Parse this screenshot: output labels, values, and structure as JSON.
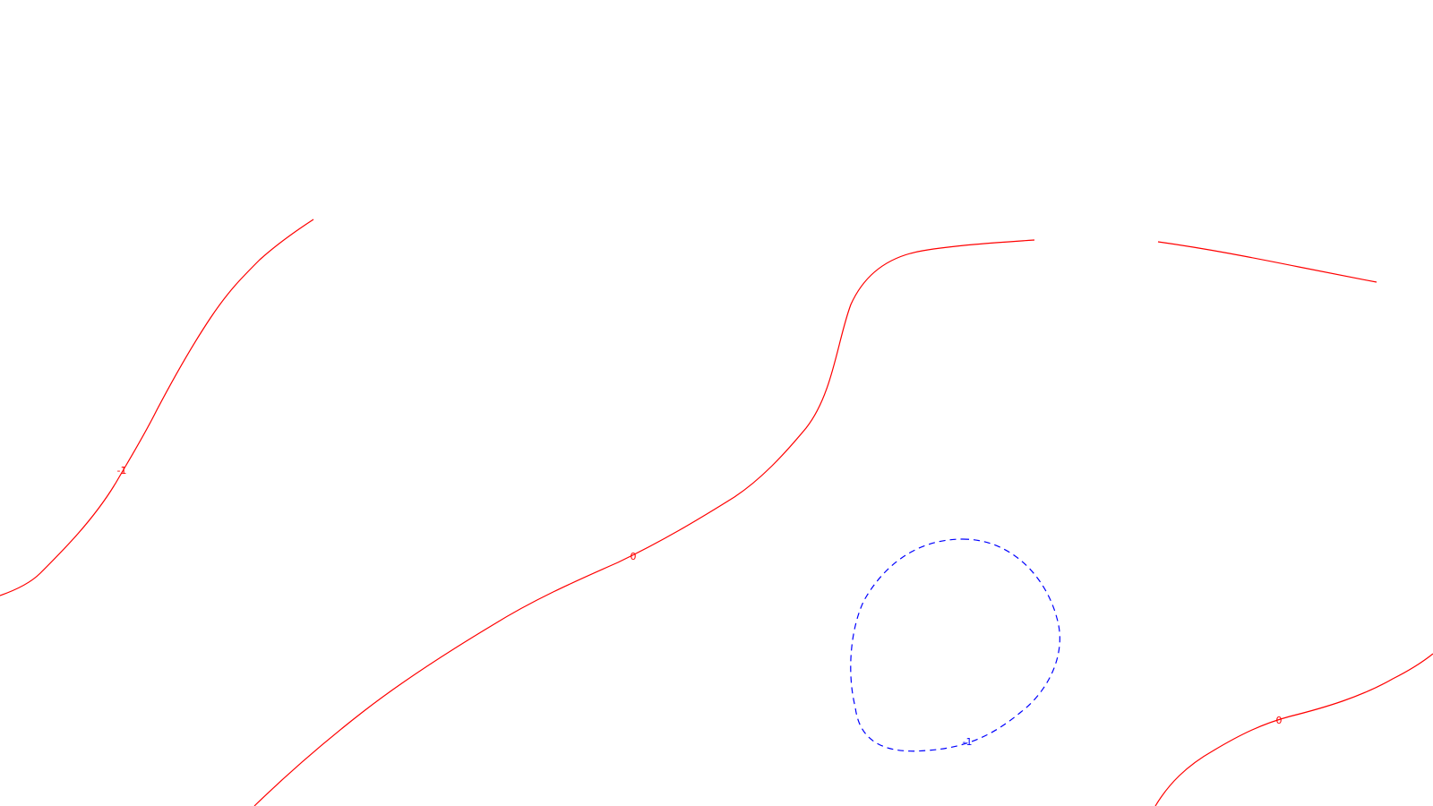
{
  "map": {
    "colors": {
      "background": "#ffffff",
      "contour_zero_or_negative": "#ff0000",
      "contour_dashed": "#0000ff"
    },
    "contours": [
      {
        "id": "contour-left",
        "level_label": "-1",
        "color": "#ff0000",
        "style": "solid"
      },
      {
        "id": "contour-middle",
        "level_label": "0",
        "color": "#ff0000",
        "style": "solid"
      },
      {
        "id": "contour-top-right",
        "level_label": "",
        "color": "#ff0000",
        "style": "solid"
      },
      {
        "id": "contour-bottom-right",
        "level_label": "0",
        "color": "#ff0000",
        "style": "solid"
      },
      {
        "id": "contour-closed-loop",
        "level_label": "-1",
        "color": "#0000ff",
        "style": "dashed"
      }
    ]
  }
}
